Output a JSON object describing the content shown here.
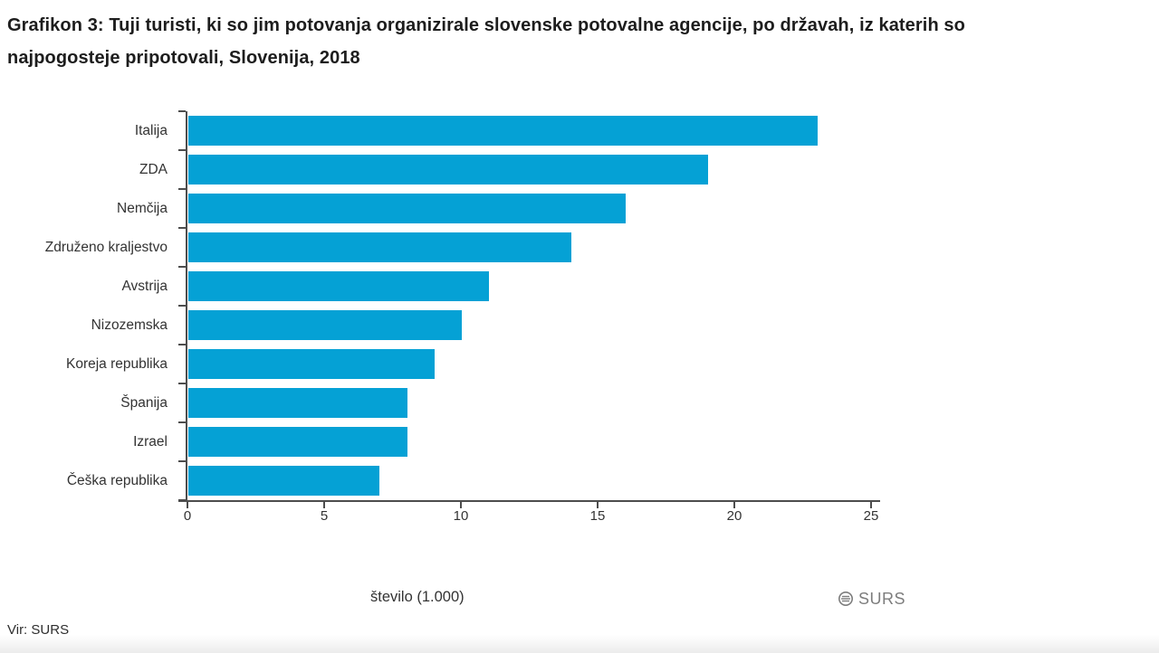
{
  "title": {
    "line1": "Grafikon 3: Tuji turisti, ki so jim potovanja organizirale slovenske potovalne agencije, po državah, iz katerih so",
    "line2": "najpogosteje pripotovali, Slovenija, 2018"
  },
  "chart_data": {
    "type": "bar",
    "orientation": "horizontal",
    "title": "Grafikon 3: Tuji turisti, ki so jim potovanja organizirale slovenske potovalne agencije, po državah, iz katerih so najpogosteje pripotovali, Slovenija, 2018",
    "categories": [
      "Italija",
      "ZDA",
      "Nemčija",
      "Združeno kraljestvo",
      "Avstrija",
      "Nizozemska",
      "Koreja republika",
      "Španija",
      "Izrael",
      "Češka republika"
    ],
    "values": [
      23,
      19,
      16,
      14,
      11,
      10,
      9,
      8,
      8,
      7
    ],
    "series_name": "število (1.000)",
    "xlabel": "",
    "ylabel": "",
    "xlim": [
      0,
      25
    ],
    "x_ticks": [
      "0",
      "5",
      "10",
      "15",
      "20",
      "25"
    ],
    "bar_color": "#05a1d5",
    "axis_color": "#4d4d4d",
    "grid": false,
    "legend_position": "bottom-center"
  },
  "legend": {
    "label": "število (1.000)"
  },
  "branding": {
    "logo_text": "SURS"
  },
  "source": "Vir: SURS"
}
